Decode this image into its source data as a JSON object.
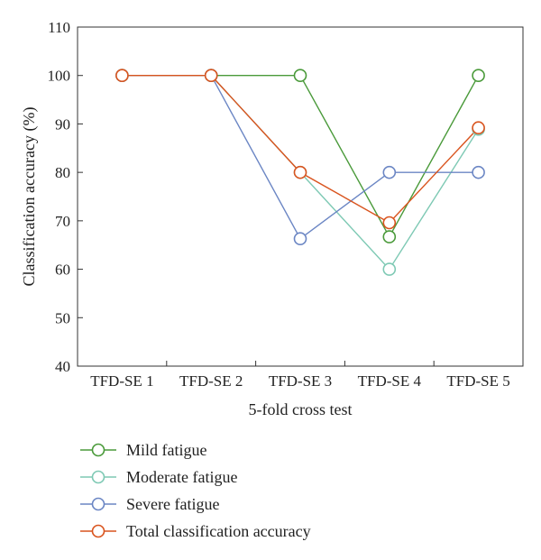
{
  "chart_data": {
    "type": "line",
    "xlabel": "5-fold cross test",
    "ylabel": "Classification accuracy (%)",
    "categories": [
      "TFD-SE 1",
      "TFD-SE 2",
      "TFD-SE 3",
      "TFD-SE 4",
      "TFD-SE 5"
    ],
    "yticks": [
      40,
      50,
      60,
      70,
      80,
      90,
      100,
      110
    ],
    "ylim": [
      40,
      110
    ],
    "grid": false,
    "legend_position": "bottom",
    "marker": "open-circle",
    "series": [
      {
        "name": "Mild fatigue",
        "color": "#4a9a3a",
        "values": [
          100,
          100,
          100,
          66.7,
          100
        ]
      },
      {
        "name": "Moderate fatigue",
        "color": "#7ec9b4",
        "values": [
          100,
          100,
          80,
          60,
          88.9
        ]
      },
      {
        "name": "Severe fatigue",
        "color": "#6b86c4",
        "values": [
          100,
          100,
          66.3,
          80,
          80
        ]
      },
      {
        "name": "Total classification accuracy",
        "color": "#d9541e",
        "values": [
          100,
          100,
          80,
          69.6,
          89.2
        ]
      }
    ]
  }
}
